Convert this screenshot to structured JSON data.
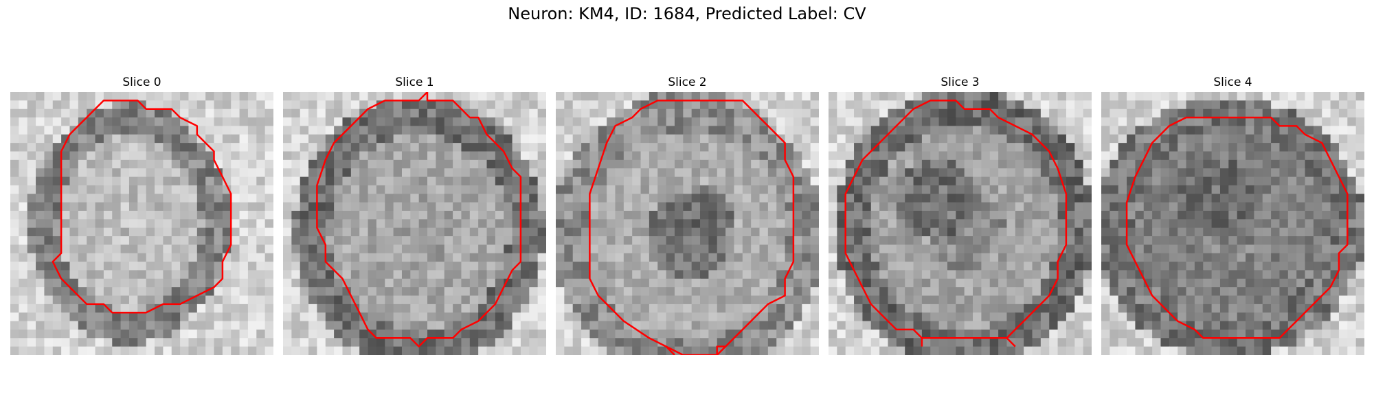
{
  "figure": {
    "title": "Neuron: KM4, ID: 1684, Predicted Label: CV"
  },
  "slices": [
    {
      "label": "Slice 0"
    },
    {
      "label": "Slice 1"
    },
    {
      "label": "Slice 2"
    },
    {
      "label": "Slice 3"
    },
    {
      "label": "Slice 4"
    }
  ],
  "colors": {
    "contour": "#ff0000",
    "background": "#ffffff"
  }
}
